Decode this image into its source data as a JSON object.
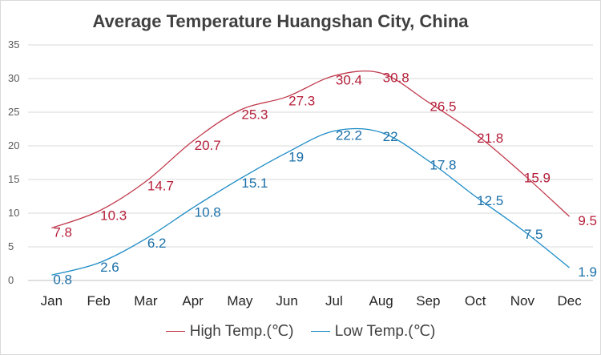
{
  "chart_data": {
    "type": "line",
    "title": "Average Temperature Huangshan City, China",
    "categories": [
      "Jan",
      "Feb",
      "Mar",
      "Apr",
      "May",
      "Jun",
      "Jul",
      "Aug",
      "Sep",
      "Oct",
      "Nov",
      "Dec"
    ],
    "series": [
      {
        "name": "High Temp.(℃)",
        "values": [
          7.8,
          10.3,
          14.7,
          20.7,
          25.3,
          27.3,
          30.4,
          30.8,
          26.5,
          21.8,
          15.9,
          9.5
        ],
        "color": "#c0394b"
      },
      {
        "name": "Low Temp.(℃)",
        "values": [
          0.8,
          2.6,
          6.2,
          10.8,
          15.1,
          19,
          22.2,
          22,
          17.8,
          12.5,
          7.5,
          1.9
        ],
        "color": "#1b8bc6"
      }
    ],
    "ylim": [
      0,
      35
    ],
    "yticks": [
      0,
      5,
      10,
      15,
      20,
      25,
      30,
      35
    ],
    "grid": true,
    "legend_position": "bottom",
    "label_colors": {
      "high": "#b5203b",
      "low": "#1a6fa8"
    }
  }
}
